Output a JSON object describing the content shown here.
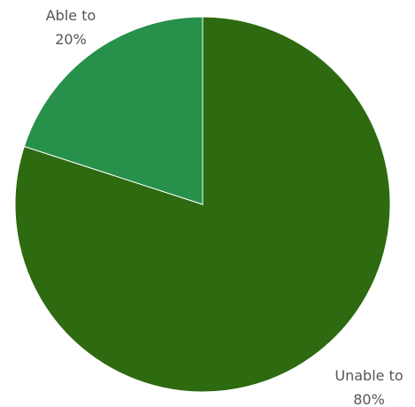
{
  "chart_data": {
    "type": "pie",
    "title": "",
    "legend": "none",
    "slices": [
      {
        "label": "Unable to",
        "value": 80,
        "value_label": "80%",
        "color": "#2d6a10"
      },
      {
        "label": "Able to",
        "value": 20,
        "value_label": "20%",
        "color": "#27904a"
      }
    ]
  }
}
